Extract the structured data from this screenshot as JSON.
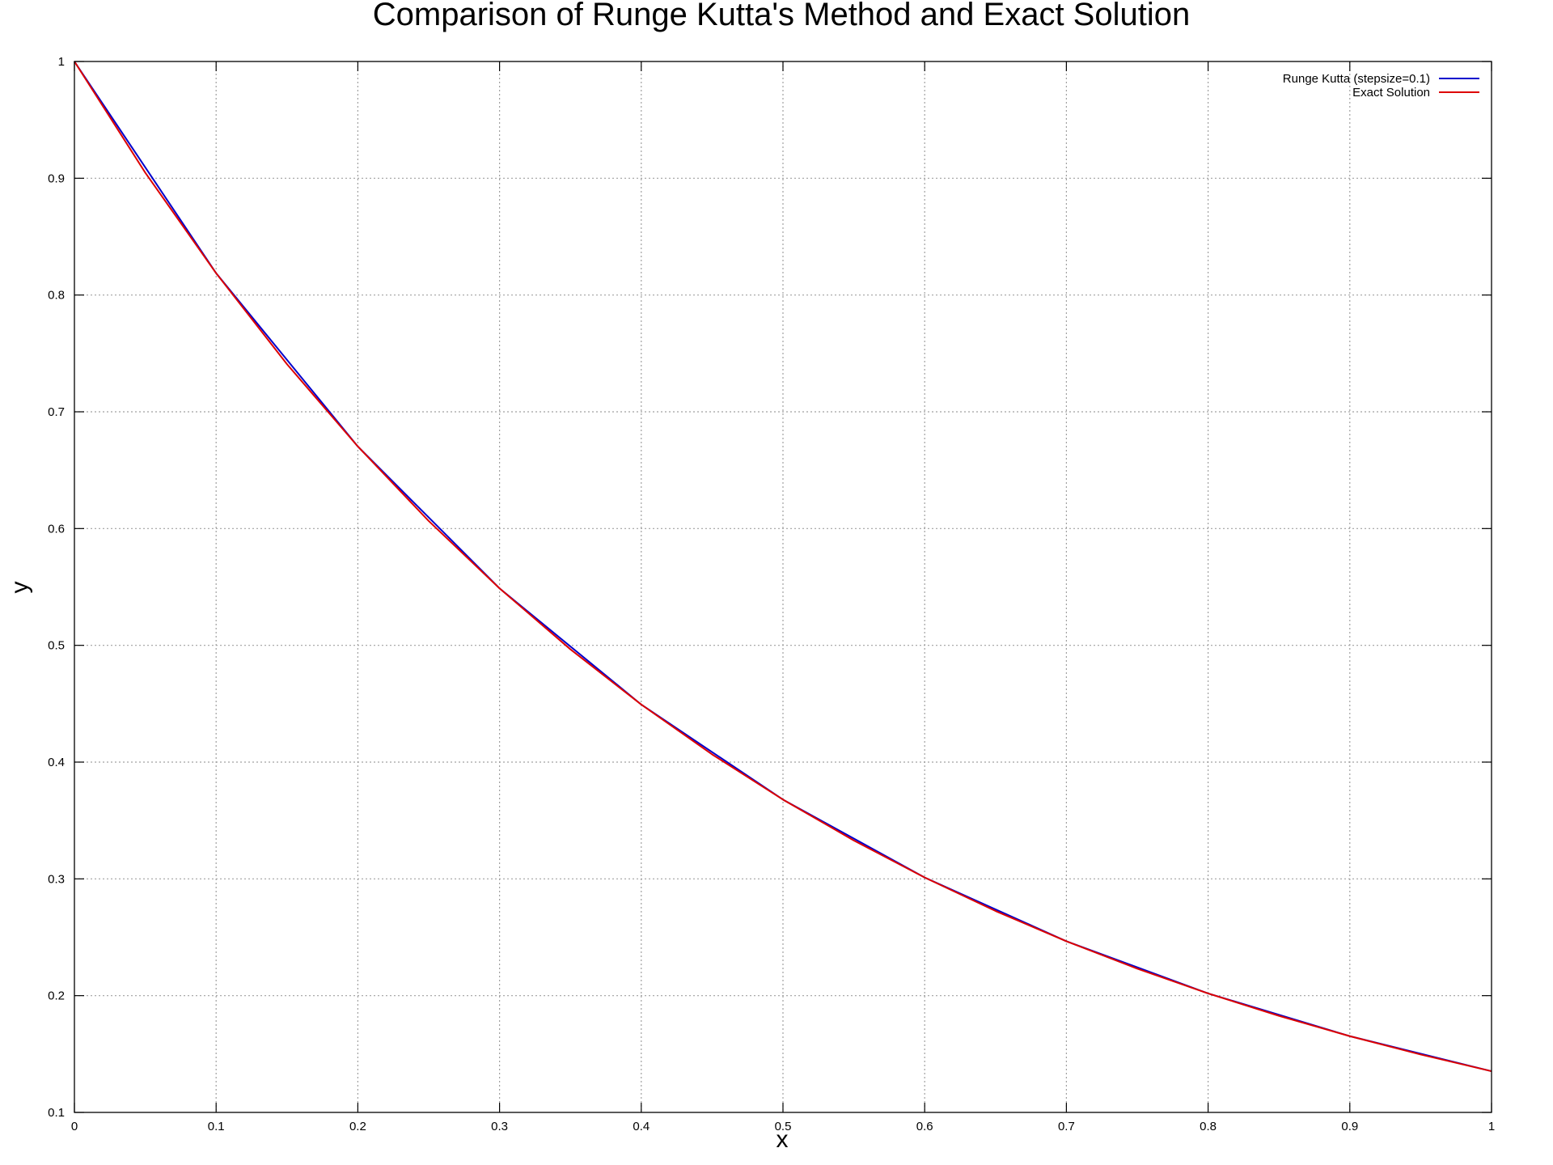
{
  "chart_data": {
    "type": "line",
    "title": "Comparison of Runge Kutta's Method and Exact Solution",
    "xlabel": "x",
    "ylabel": "y",
    "xlim": [
      0,
      1
    ],
    "ylim": [
      0.1,
      1
    ],
    "xticks": [
      "0",
      "0.1",
      "0.2",
      "0.3",
      "0.4",
      "0.5",
      "0.6",
      "0.7",
      "0.8",
      "0.9",
      "1"
    ],
    "yticks": [
      "0.1",
      "0.2",
      "0.3",
      "0.4",
      "0.5",
      "0.6",
      "0.7",
      "0.8",
      "0.9",
      "1"
    ],
    "grid": true,
    "legend_position": "top-right",
    "series": [
      {
        "name": "Runge Kutta (stepsize=0.1)",
        "color": "#0000cc",
        "x": [
          0,
          0.1,
          0.2,
          0.3,
          0.4,
          0.5,
          0.6,
          0.7,
          0.8,
          0.9,
          1.0
        ],
        "y": [
          1.0,
          0.8187,
          0.6703,
          0.5488,
          0.4493,
          0.3679,
          0.3012,
          0.2466,
          0.2019,
          0.1653,
          0.1353
        ]
      },
      {
        "name": "Exact Solution",
        "color": "#dd0000",
        "x": [
          0,
          0.05,
          0.1,
          0.15,
          0.2,
          0.25,
          0.3,
          0.35,
          0.4,
          0.45,
          0.5,
          0.55,
          0.6,
          0.65,
          0.7,
          0.75,
          0.8,
          0.85,
          0.9,
          0.95,
          1.0
        ],
        "y": [
          1.0,
          0.9048,
          0.8187,
          0.7408,
          0.6703,
          0.6065,
          0.5488,
          0.4966,
          0.4493,
          0.4066,
          0.3679,
          0.3329,
          0.3012,
          0.2725,
          0.2466,
          0.2231,
          0.2019,
          0.1827,
          0.1653,
          0.1496,
          0.1353
        ]
      }
    ]
  }
}
